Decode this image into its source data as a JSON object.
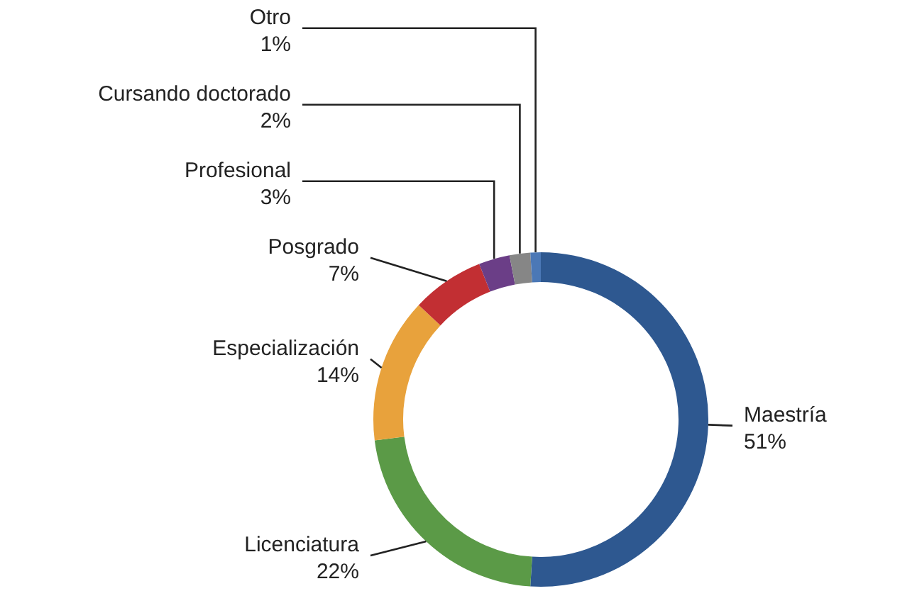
{
  "chart_data": {
    "type": "donut",
    "categories": [
      "Maestría",
      "Licenciatura",
      "Especialización",
      "Posgrado",
      "Profesional",
      "Cursando doctorado",
      "Otro"
    ],
    "values": [
      51,
      22,
      14,
      7,
      3,
      2,
      1
    ],
    "value_labels": [
      "51%",
      "22%",
      "14%",
      "7%",
      "3%",
      "2%",
      "1%"
    ],
    "colors": [
      "#2e5890",
      "#5b9a47",
      "#e8a23c",
      "#c22f33",
      "#6b3e87",
      "#868686",
      "#4b78b6"
    ]
  }
}
